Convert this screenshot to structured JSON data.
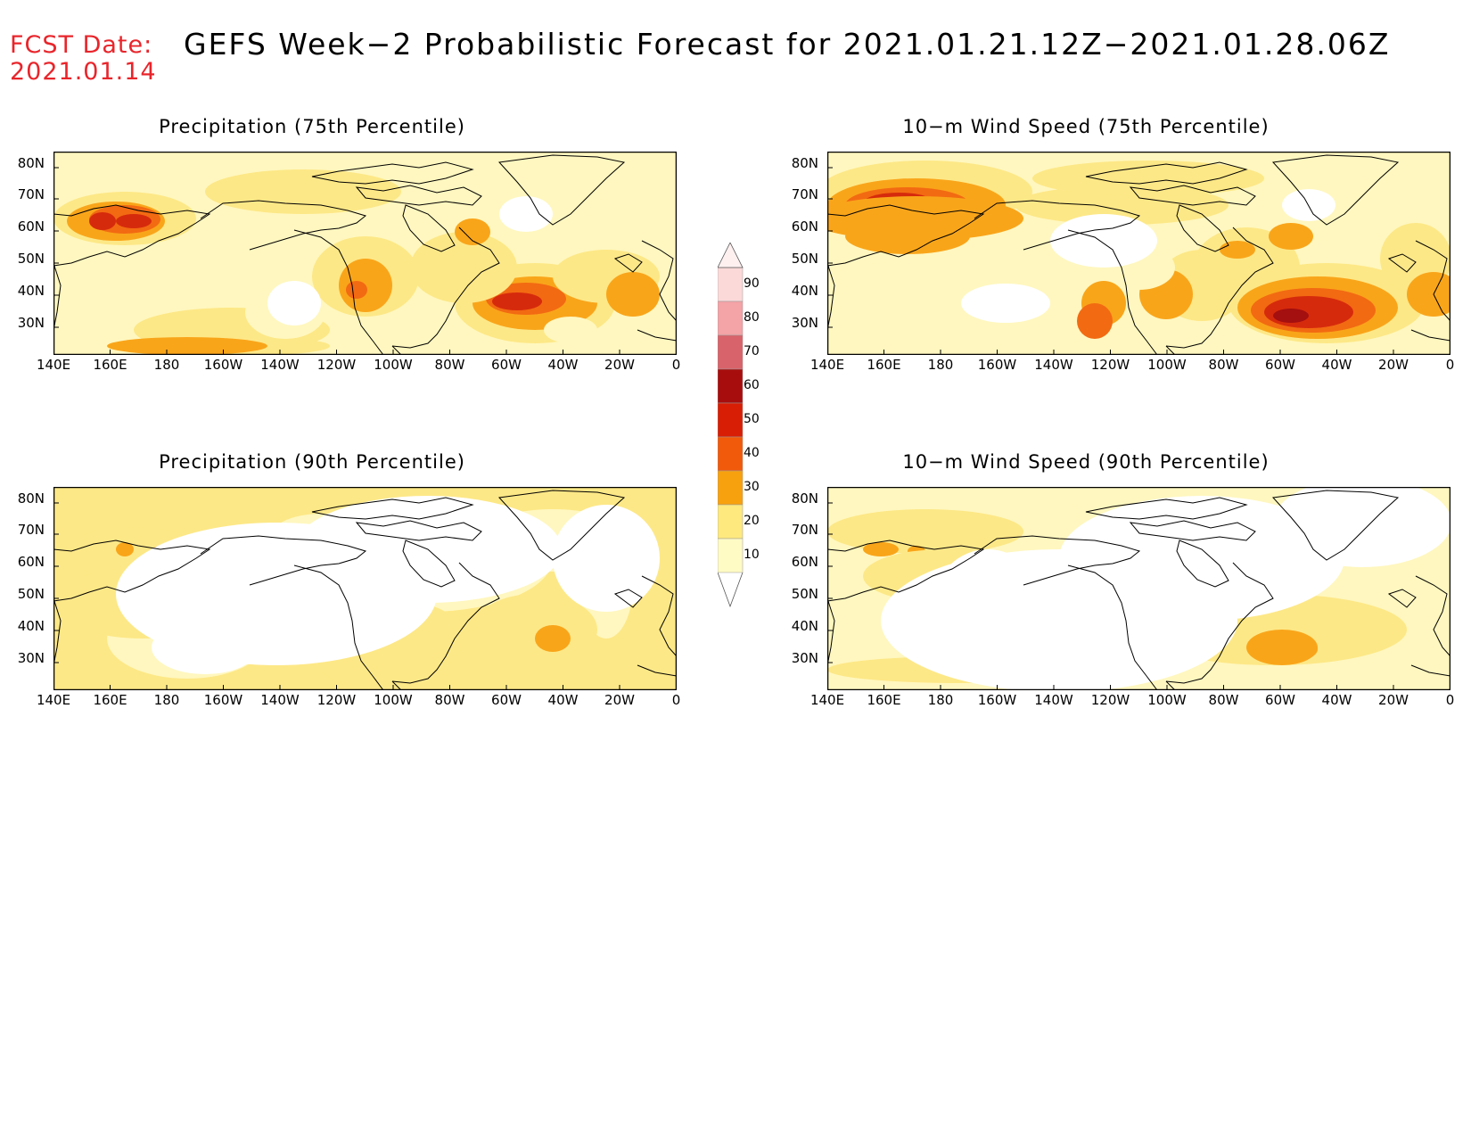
{
  "fcst_date": {
    "label": "FCST Date:",
    "value": "2021.01.14"
  },
  "title": "GEFS Week−2 Probabilistic Forecast for 2021.01.21.12Z−2021.01.28.06Z",
  "panels": [
    {
      "title": "Precipitation (75th Percentile)",
      "key": "precip75"
    },
    {
      "title": "10−m Wind Speed (75th Percentile)",
      "key": "wind75"
    },
    {
      "title": "Precipitation (90th Percentile)",
      "key": "precip90"
    },
    {
      "title": "10−m Wind Speed (90th Percentile)",
      "key": "wind90"
    }
  ],
  "lat_labels": [
    "80N",
    "70N",
    "60N",
    "50N",
    "40N",
    "30N"
  ],
  "lon_labels": [
    "140E",
    "160E",
    "180",
    "160W",
    "140W",
    "120W",
    "100W",
    "80W",
    "60W",
    "40W",
    "20W",
    "0"
  ],
  "colorbar": {
    "labels": [
      "90",
      "80",
      "70",
      "60",
      "50",
      "40",
      "30",
      "20",
      "10"
    ],
    "colors": [
      "#fcd9d9",
      "#f4a3a6",
      "#d9636a",
      "#a80d0d",
      "#d81e05",
      "#f15a0a",
      "#f8a10e",
      "#fde97e",
      "#fffbc5"
    ]
  },
  "palette": {
    "c10": "#fff7bf",
    "c20": "#fde887",
    "c30": "#f9a51a",
    "c40": "#f26a12",
    "c50": "#d62a0c",
    "c60": "#a40f0f"
  }
}
